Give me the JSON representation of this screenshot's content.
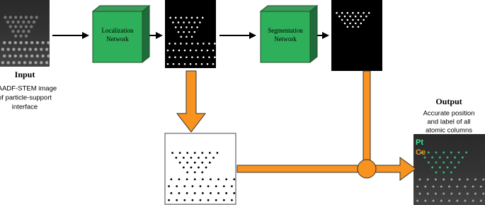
{
  "input": {
    "title": "Input",
    "description": [
      "HAADF-STEM image",
      "of particle-support",
      "interface"
    ]
  },
  "networks": [
    {
      "label": [
        "Localization",
        "Network"
      ]
    },
    {
      "label": [
        "Segmentation",
        "Network"
      ]
    }
  ],
  "output": {
    "title": "Output",
    "description": [
      "Accurate position",
      "and label of all",
      "atomic columns"
    ],
    "legend": [
      "Pt",
      "Ce"
    ]
  }
}
